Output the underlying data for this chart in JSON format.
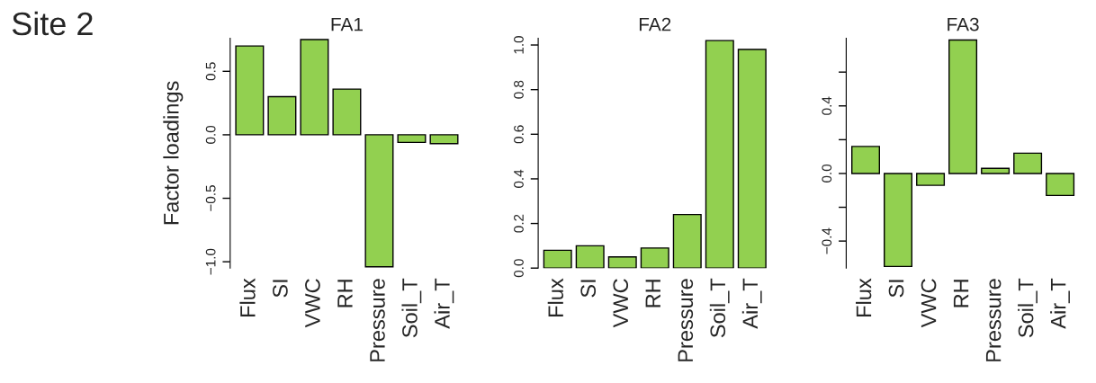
{
  "chart_data": [
    {
      "type": "bar",
      "title": "FA1",
      "ylabel": "Factor loadings",
      "annotations": [
        "Site 2"
      ],
      "categories": [
        "Flux",
        "SI",
        "VWC",
        "RH",
        "Pressure",
        "Soil_T",
        "Air_T"
      ],
      "color": "#92d050",
      "values": [
        0.7,
        0.3,
        0.75,
        0.36,
        -1.04,
        -0.06,
        -0.07
      ],
      "ylim": [
        -1.05,
        0.76
      ],
      "yticks": [
        {
          "value": -1.0,
          "label": "−1.0"
        },
        {
          "value": -0.5,
          "label": "−0.5"
        },
        {
          "value": 0.0,
          "label": "0.0"
        },
        {
          "value": 0.5,
          "label": "0.5"
        }
      ],
      "grid": false,
      "legend": false
    },
    {
      "type": "bar",
      "title": "FA2",
      "categories": [
        "Flux",
        "SI",
        "VWC",
        "RH",
        "Pressure",
        "Soil_T",
        "Air_T"
      ],
      "color": "#92d050",
      "values": [
        0.08,
        0.1,
        0.05,
        0.09,
        0.24,
        1.02,
        0.98
      ],
      "ylim": [
        0,
        1.03
      ],
      "yticks": [
        {
          "value": 0.0,
          "label": "0.0"
        },
        0.2,
        0.4,
        0.6,
        0.8,
        {
          "value": 1.0,
          "label": "1.0"
        }
      ],
      "grid": false,
      "legend": false
    },
    {
      "type": "bar",
      "title": "FA3",
      "categories": [
        "Flux",
        "SI",
        "VWC",
        "RH",
        "Pressure",
        "Soil_T",
        "Air_T"
      ],
      "color": "#92d050",
      "values": [
        0.16,
        -0.55,
        -0.07,
        0.79,
        0.03,
        0.12,
        -0.13
      ],
      "ylim": [
        -0.56,
        0.8
      ],
      "yticks": [
        {
          "value": -0.4,
          "label": "−0.4"
        },
        {
          "value": -0.2,
          "label": null
        },
        {
          "value": 0.0,
          "label": "0.0"
        },
        {
          "value": 0.2,
          "label": null
        },
        0.4,
        {
          "value": 0.6,
          "label": null
        }
      ],
      "grid": false,
      "legend": false
    }
  ]
}
